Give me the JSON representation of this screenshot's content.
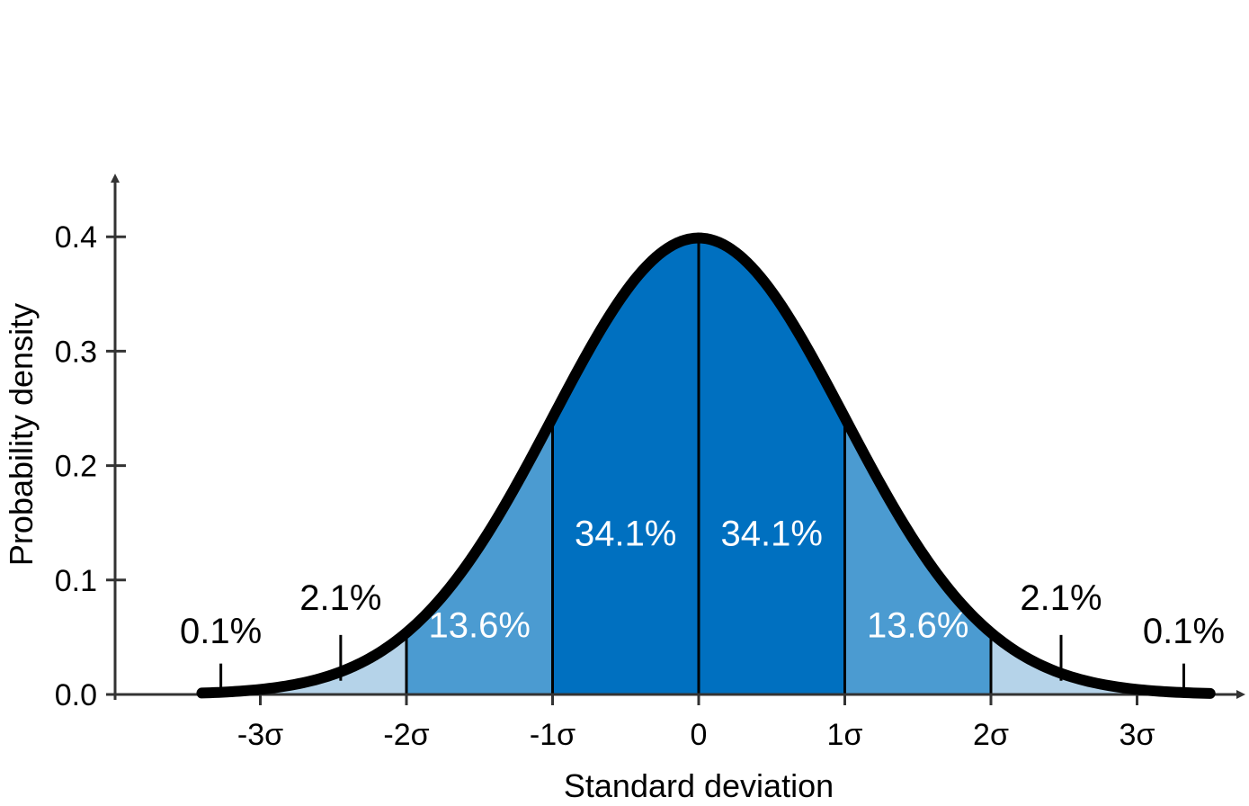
{
  "chart_data": {
    "type": "area",
    "distribution": "normal",
    "mean": 0,
    "sd": 1,
    "xlabel": "Standard deviation",
    "ylabel": "Probability density",
    "xlim": [
      -3.4,
      3.5
    ],
    "ylim": [
      0,
      0.4
    ],
    "x_ticks": [
      {
        "value": -3,
        "label": "-3σ"
      },
      {
        "value": -2,
        "label": "-2σ"
      },
      {
        "value": -1,
        "label": "-1σ"
      },
      {
        "value": 0,
        "label": "0"
      },
      {
        "value": 1,
        "label": "1σ"
      },
      {
        "value": 2,
        "label": "2σ"
      },
      {
        "value": 3,
        "label": "3σ"
      }
    ],
    "y_ticks": [
      {
        "value": 0.0,
        "label": "0.0"
      },
      {
        "value": 0.1,
        "label": "0.1"
      },
      {
        "value": 0.2,
        "label": "0.2"
      },
      {
        "value": 0.3,
        "label": "0.3"
      },
      {
        "value": 0.4,
        "label": "0.4"
      }
    ],
    "regions": [
      {
        "from": -3.4,
        "to": -2,
        "percent": 2.1,
        "label": "2.1%",
        "color": "#b5d3e9"
      },
      {
        "from": -2,
        "to": -1,
        "percent": 13.6,
        "label": "13.6%",
        "color": "#4b9bd1"
      },
      {
        "from": -1,
        "to": 0,
        "percent": 34.1,
        "label": "34.1%",
        "color": "#0070c0"
      },
      {
        "from": 0,
        "to": 1,
        "percent": 34.1,
        "label": "34.1%",
        "color": "#0070c0"
      },
      {
        "from": 1,
        "to": 2,
        "percent": 13.6,
        "label": "13.6%",
        "color": "#4b9bd1"
      },
      {
        "from": 2,
        "to": 3.5,
        "percent": 2.1,
        "label": "2.1%",
        "color": "#b5d3e9"
      }
    ],
    "tail_labels": [
      {
        "side": "left",
        "label": "0.1%",
        "percent": 0.1
      },
      {
        "side": "right",
        "label": "0.1%",
        "percent": 0.1
      }
    ],
    "curve_color": "#000000",
    "grid": false,
    "legend": "none"
  }
}
